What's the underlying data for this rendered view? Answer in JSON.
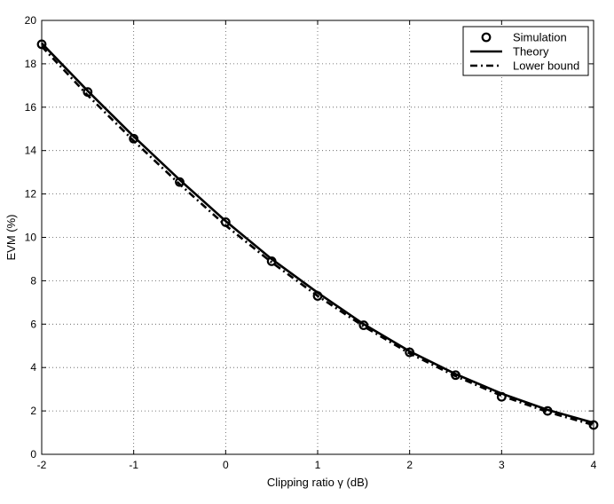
{
  "chart_data": {
    "type": "line",
    "title": "",
    "xlabel": "Clipping ratio γ (dB)",
    "ylabel": "EVM (%)",
    "xlim": [
      -2,
      4
    ],
    "ylim": [
      0,
      20
    ],
    "xticks": [
      -2,
      -1,
      0,
      1,
      2,
      3,
      4
    ],
    "yticks": [
      0,
      2,
      4,
      6,
      8,
      10,
      12,
      14,
      16,
      18,
      20
    ],
    "grid": true,
    "legend_position": "top-right",
    "series": [
      {
        "name": "Simulation",
        "style": "markers-circle",
        "x": [
          -2,
          -1.5,
          -1,
          -0.5,
          0,
          0.5,
          1,
          1.5,
          2,
          2.5,
          3,
          3.5,
          4
        ],
        "y": [
          18.9,
          16.7,
          14.55,
          12.55,
          10.7,
          8.9,
          7.3,
          5.95,
          4.7,
          3.65,
          2.65,
          2.0,
          1.35
        ]
      },
      {
        "name": "Theory",
        "style": "solid",
        "x": [
          -2,
          -1.5,
          -1,
          -0.5,
          0,
          0.5,
          1,
          1.5,
          2,
          2.5,
          3,
          3.5,
          4
        ],
        "y": [
          18.95,
          16.75,
          14.65,
          12.65,
          10.75,
          9.0,
          7.45,
          6.0,
          4.75,
          3.7,
          2.8,
          2.05,
          1.45
        ]
      },
      {
        "name": "Lower bound",
        "style": "dash-dot",
        "x": [
          -2,
          -1.5,
          -1,
          -0.5,
          0,
          0.5,
          1,
          1.5,
          2,
          2.5,
          3,
          3.5,
          4
        ],
        "y": [
          18.8,
          16.55,
          14.45,
          12.45,
          10.55,
          8.85,
          7.3,
          5.9,
          4.65,
          3.6,
          2.7,
          1.95,
          1.35
        ]
      }
    ]
  }
}
